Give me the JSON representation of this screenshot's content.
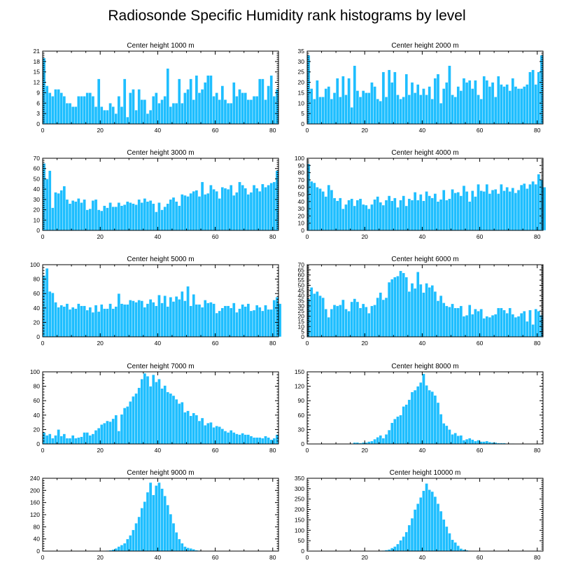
{
  "title": "Radiosonde Specific Humidity rank histograms by level",
  "chart_data": [
    {
      "type": "bar",
      "title": "Center height 1000 m",
      "xlim": [
        0,
        82
      ],
      "ylim": [
        0,
        21
      ],
      "xticks": [
        0,
        20,
        40,
        60,
        80
      ],
      "yticks": [
        0,
        3,
        6,
        9,
        12,
        15,
        18,
        21
      ],
      "bar_color": "#1ebeff",
      "values": [
        19,
        11,
        9,
        8,
        10,
        10,
        9,
        8,
        6,
        6,
        5,
        5,
        8,
        8,
        8,
        9,
        9,
        8,
        5,
        13,
        5,
        4,
        4,
        6,
        5,
        3,
        8,
        5,
        13,
        2,
        9,
        10,
        4,
        10,
        7,
        7,
        3,
        4,
        8,
        9,
        6,
        7,
        8,
        16,
        5,
        6,
        6,
        13,
        6,
        9,
        10,
        13,
        7,
        14,
        9,
        10,
        12,
        14,
        14,
        8,
        9,
        7,
        11,
        7,
        6,
        6,
        12,
        8,
        10,
        9,
        9,
        7,
        7,
        8,
        8,
        13,
        13,
        7,
        11,
        14,
        8,
        10
      ]
    },
    {
      "type": "bar",
      "title": "Center height 2000 m",
      "xlim": [
        0,
        82
      ],
      "ylim": [
        0,
        35
      ],
      "xticks": [
        0,
        20,
        40,
        60,
        80
      ],
      "yticks": [
        0,
        5,
        10,
        15,
        20,
        25,
        30,
        35
      ],
      "bar_color": "#1ebeff",
      "values": [
        33,
        17,
        12,
        21,
        13,
        13,
        17,
        18,
        12,
        15,
        22,
        13,
        23,
        14,
        22,
        8,
        28,
        16,
        13,
        16,
        15,
        15,
        20,
        18,
        12,
        11,
        25,
        13,
        26,
        20,
        25,
        14,
        12,
        13,
        24,
        14,
        20,
        15,
        19,
        14,
        17,
        14,
        18,
        12,
        22,
        24,
        10,
        17,
        20,
        28,
        14,
        13,
        18,
        16,
        22,
        20,
        21,
        17,
        21,
        14,
        12,
        23,
        21,
        18,
        20,
        13,
        23,
        19,
        18,
        19,
        16,
        22,
        18,
        17,
        17,
        18,
        19,
        25,
        26,
        19,
        25,
        33
      ]
    },
    {
      "type": "bar",
      "title": "Center height 3000 m",
      "xlim": [
        0,
        82
      ],
      "ylim": [
        0,
        70
      ],
      "xticks": [
        0,
        20,
        40,
        60,
        80
      ],
      "yticks": [
        0,
        10,
        20,
        30,
        40,
        50,
        60,
        70
      ],
      "bar_color": "#1ebeff",
      "values": [
        65,
        50,
        58,
        22,
        37,
        36,
        39,
        43,
        30,
        26,
        29,
        28,
        31,
        27,
        30,
        20,
        21,
        29,
        30,
        20,
        19,
        24,
        22,
        27,
        23,
        23,
        27,
        24,
        25,
        28,
        27,
        26,
        25,
        30,
        27,
        31,
        28,
        29,
        26,
        18,
        27,
        20,
        23,
        26,
        30,
        32,
        28,
        24,
        35,
        34,
        33,
        36,
        38,
        39,
        33,
        47,
        35,
        36,
        44,
        40,
        38,
        31,
        42,
        41,
        40,
        44,
        34,
        37,
        47,
        44,
        41,
        35,
        37,
        44,
        41,
        38,
        45,
        42,
        44,
        46,
        47,
        58
      ]
    },
    {
      "type": "bar",
      "title": "Center height 4000 m",
      "xlim": [
        0,
        82
      ],
      "ylim": [
        0,
        100
      ],
      "xticks": [
        0,
        20,
        40,
        60,
        80
      ],
      "yticks": [
        0,
        10,
        20,
        30,
        40,
        50,
        60,
        70,
        80,
        90,
        100
      ],
      "bar_color": "#1ebeff",
      "values": [
        92,
        68,
        66,
        60,
        58,
        54,
        47,
        63,
        56,
        45,
        41,
        45,
        30,
        36,
        42,
        44,
        34,
        42,
        44,
        36,
        35,
        30,
        36,
        43,
        47,
        39,
        35,
        42,
        48,
        41,
        45,
        32,
        42,
        48,
        34,
        44,
        42,
        53,
        42,
        50,
        41,
        54,
        48,
        45,
        51,
        40,
        43,
        56,
        42,
        44,
        57,
        52,
        53,
        48,
        62,
        54,
        40,
        55,
        47,
        64,
        55,
        54,
        64,
        51,
        56,
        57,
        51,
        64,
        55,
        60,
        54,
        59,
        52,
        56,
        63,
        65,
        58,
        64,
        68,
        64,
        78,
        70,
        60
      ]
    },
    {
      "type": "bar",
      "title": "Center height 5000 m",
      "xlim": [
        0,
        82
      ],
      "ylim": [
        0,
        100
      ],
      "xticks": [
        0,
        20,
        40,
        60,
        80
      ],
      "yticks": [
        0,
        20,
        40,
        60,
        80,
        100
      ],
      "bar_color": "#1ebeff",
      "values": [
        85,
        95,
        63,
        61,
        48,
        41,
        44,
        42,
        46,
        38,
        41,
        39,
        46,
        43,
        43,
        37,
        41,
        34,
        44,
        35,
        45,
        39,
        39,
        46,
        39,
        42,
        60,
        46,
        45,
        45,
        51,
        50,
        48,
        51,
        50,
        41,
        46,
        52,
        48,
        43,
        58,
        47,
        57,
        42,
        55,
        49,
        56,
        52,
        63,
        50,
        70,
        43,
        59,
        45,
        45,
        41,
        51,
        47,
        48,
        46,
        33,
        36,
        40,
        43,
        43,
        40,
        47,
        34,
        39,
        45,
        42,
        46,
        36,
        37,
        44,
        41,
        36,
        44,
        38,
        38,
        51,
        55,
        46
      ]
    },
    {
      "type": "bar",
      "title": "Center height 6000 m",
      "xlim": [
        0,
        82
      ],
      "ylim": [
        0,
        70
      ],
      "xticks": [
        0,
        20,
        40,
        60,
        80
      ],
      "yticks": [
        0,
        5,
        10,
        15,
        20,
        25,
        30,
        35,
        40,
        45,
        50,
        55,
        60,
        65,
        70
      ],
      "bar_color": "#1ebeff",
      "values": [
        37,
        48,
        42,
        44,
        40,
        38,
        27,
        19,
        27,
        31,
        30,
        31,
        36,
        27,
        25,
        34,
        37,
        34,
        28,
        32,
        29,
        23,
        30,
        31,
        38,
        43,
        36,
        38,
        53,
        56,
        58,
        59,
        64,
        62,
        58,
        44,
        52,
        47,
        63,
        51,
        43,
        52,
        48,
        50,
        44,
        35,
        40,
        33,
        30,
        29,
        32,
        28,
        28,
        30,
        20,
        21,
        31,
        22,
        27,
        25,
        27,
        18,
        20,
        19,
        21,
        22,
        28,
        28,
        26,
        23,
        28,
        22,
        19,
        20,
        23,
        25,
        15,
        26,
        12,
        27,
        25,
        21
      ]
    },
    {
      "type": "bar",
      "title": "Center height 7000 m",
      "xlim": [
        0,
        82
      ],
      "ylim": [
        0,
        100
      ],
      "xticks": [
        0,
        20,
        40,
        60,
        80
      ],
      "yticks": [
        0,
        20,
        40,
        60,
        80,
        100
      ],
      "bar_color": "#1ebeff",
      "values": [
        16,
        12,
        14,
        8,
        12,
        20,
        11,
        14,
        8,
        8,
        12,
        8,
        9,
        10,
        16,
        16,
        12,
        14,
        19,
        22,
        27,
        29,
        32,
        31,
        35,
        40,
        18,
        41,
        50,
        52,
        59,
        66,
        70,
        78,
        90,
        98,
        94,
        80,
        96,
        86,
        90,
        77,
        81,
        72,
        70,
        67,
        62,
        56,
        58,
        44,
        46,
        39,
        43,
        40,
        32,
        36,
        26,
        29,
        30,
        23,
        25,
        24,
        21,
        18,
        16,
        19,
        16,
        14,
        13,
        15,
        13,
        13,
        11,
        9,
        9,
        9,
        8,
        11,
        9,
        6,
        8,
        13
      ]
    },
    {
      "type": "bar",
      "title": "Center height 8000 m",
      "xlim": [
        0,
        82
      ],
      "ylim": [
        0,
        150
      ],
      "xticks": [
        0,
        20,
        40,
        60,
        80
      ],
      "yticks": [
        0,
        30,
        60,
        90,
        120,
        150
      ],
      "bar_color": "#1ebeff",
      "values": [
        0,
        0,
        0,
        0,
        0,
        0,
        0,
        0,
        0,
        0,
        0,
        0,
        0,
        0,
        0,
        1,
        3,
        3,
        2,
        3,
        3,
        5,
        6,
        10,
        14,
        18,
        12,
        20,
        29,
        44,
        52,
        57,
        60,
        78,
        82,
        92,
        108,
        112,
        120,
        128,
        146,
        122,
        112,
        109,
        101,
        86,
        62,
        43,
        38,
        30,
        20,
        23,
        17,
        18,
        8,
        10,
        12,
        9,
        6,
        8,
        5,
        5,
        6,
        4,
        3,
        3,
        2,
        2,
        2,
        1,
        1,
        1,
        0,
        0,
        0,
        0,
        0,
        0,
        0,
        0,
        0,
        0
      ]
    },
    {
      "type": "bar",
      "title": "Center height 9000 m",
      "xlim": [
        0,
        82
      ],
      "ylim": [
        0,
        240
      ],
      "xticks": [
        0,
        20,
        40,
        60,
        80
      ],
      "yticks": [
        0,
        40,
        80,
        120,
        160,
        200,
        240
      ],
      "bar_color": "#1ebeff",
      "values": [
        0,
        0,
        0,
        0,
        0,
        0,
        0,
        0,
        0,
        0,
        0,
        0,
        0,
        0,
        0,
        0,
        0,
        0,
        0,
        0,
        1,
        1,
        2,
        3,
        5,
        9,
        15,
        20,
        26,
        40,
        52,
        70,
        92,
        113,
        142,
        163,
        194,
        226,
        185,
        216,
        226,
        206,
        182,
        152,
        122,
        92,
        62,
        40,
        26,
        15,
        11,
        9,
        6,
        3,
        2,
        1,
        1,
        0,
        0,
        0,
        0,
        0,
        0,
        0,
        0,
        0,
        0,
        0,
        0,
        0,
        0,
        0,
        0,
        0,
        0,
        0,
        0,
        0,
        0,
        0,
        0,
        0
      ]
    },
    {
      "type": "bar",
      "title": "Center height 10000 m",
      "xlim": [
        0,
        82
      ],
      "ylim": [
        0,
        350
      ],
      "xticks": [
        0,
        20,
        40,
        60,
        80
      ],
      "yticks": [
        0,
        50,
        100,
        150,
        200,
        250,
        300,
        350
      ],
      "bar_color": "#1ebeff",
      "values": [
        0,
        0,
        0,
        0,
        0,
        0,
        0,
        0,
        0,
        0,
        0,
        0,
        0,
        0,
        0,
        0,
        0,
        0,
        0,
        0,
        0,
        0,
        0,
        0,
        1,
        2,
        3,
        5,
        8,
        15,
        22,
        34,
        52,
        70,
        92,
        125,
        158,
        200,
        228,
        258,
        290,
        325,
        295,
        286,
        262,
        228,
        192,
        152,
        118,
        86,
        55,
        42,
        26,
        12,
        7,
        4,
        2,
        1,
        1,
        0,
        0,
        0,
        0,
        0,
        0,
        0,
        0,
        0,
        0,
        0,
        0,
        0,
        0,
        0,
        0,
        0,
        0,
        0,
        0,
        0,
        0,
        0
      ]
    }
  ]
}
